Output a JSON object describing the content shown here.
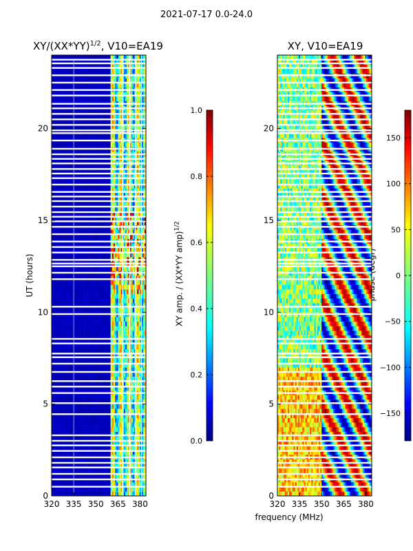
{
  "figure": {
    "suptitle": "2021-07-17 0.0-24.0"
  },
  "colors": {
    "jet": [
      "#00007f",
      "#0000ff",
      "#007fff",
      "#00ffff",
      "#7fff7f",
      "#ffff00",
      "#ff7f00",
      "#ff0000",
      "#7f0000"
    ],
    "frame": "#000000",
    "gap": "#ffffff",
    "gridline": "#bfbfbf"
  },
  "chart_data": [
    {
      "type": "heatmap",
      "id": "amplitude",
      "title": "XY/(XX*YY)",
      "title_sup": "1/2",
      "title_suffix": ", V10=EA19",
      "xlabel": "",
      "ylabel": "UT (hours)",
      "xlim": [
        320,
        384
      ],
      "ylim": [
        0,
        24
      ],
      "xticks": [
        "320",
        "335",
        "350",
        "365",
        "380"
      ],
      "xtick_values": [
        320,
        335,
        350,
        365,
        380
      ],
      "yticks": [
        "0",
        "5",
        "10",
        "15",
        "20"
      ],
      "ytick_values": [
        0,
        5,
        10,
        15,
        20
      ],
      "colorbar": {
        "label": "XY amp. / (XX*YY amp)",
        "label_sup": "1/2",
        "range": [
          0,
          1
        ],
        "ticks": [
          "0.0",
          "0.2",
          "0.4",
          "0.6",
          "0.8",
          "1.0"
        ],
        "tick_values": [
          0,
          0.2,
          0.4,
          0.6,
          0.8,
          1.0
        ]
      },
      "description_values": {
        "low_band_level": 0.05,
        "high_band_start_mhz": 360,
        "high_band_level_mean": 0.45
      }
    },
    {
      "type": "heatmap",
      "id": "phase",
      "title": "XY, V10=EA19",
      "xlabel": "frequency (MHz)",
      "ylabel": "",
      "xlim": [
        320,
        384
      ],
      "ylim": [
        0,
        24
      ],
      "xticks": [
        "320",
        "335",
        "350",
        "365",
        "380"
      ],
      "xtick_values": [
        320,
        335,
        350,
        365,
        380
      ],
      "yticks": [
        "0",
        "5",
        "10",
        "15",
        "20"
      ],
      "ytick_values": [
        0,
        5,
        10,
        15,
        20
      ],
      "colorbar": {
        "label": "phase (degr)",
        "range": [
          -180,
          180
        ],
        "ticks": [
          "−150",
          "−100",
          "−50",
          "0",
          "50",
          "100",
          "150"
        ],
        "tick_values": [
          -150,
          -100,
          -50,
          0,
          50,
          100,
          150
        ]
      }
    }
  ],
  "flagged_hours": [
    0.5,
    0.9,
    1.2,
    1.55,
    1.8,
    2.1,
    2.45,
    2.75,
    3.0,
    3.3,
    4.45,
    5.05,
    5.6,
    5.95,
    6.25,
    6.75,
    7.2,
    7.55,
    7.75,
    8.3,
    8.55,
    9.9,
    10.3,
    11.8,
    12.15,
    12.5,
    12.65,
    12.85,
    13.25,
    13.55,
    13.85,
    14.25,
    14.65,
    14.95,
    15.2,
    15.45,
    15.75,
    16.05,
    16.3,
    16.55,
    16.95,
    17.3,
    17.55,
    17.8,
    18.1,
    18.35,
    18.6,
    18.9,
    19.35,
    19.75,
    19.9,
    20.2,
    20.5,
    20.8,
    21.1,
    21.35,
    21.8,
    22.1,
    22.5,
    22.9,
    23.3,
    23.55,
    23.75
  ]
}
